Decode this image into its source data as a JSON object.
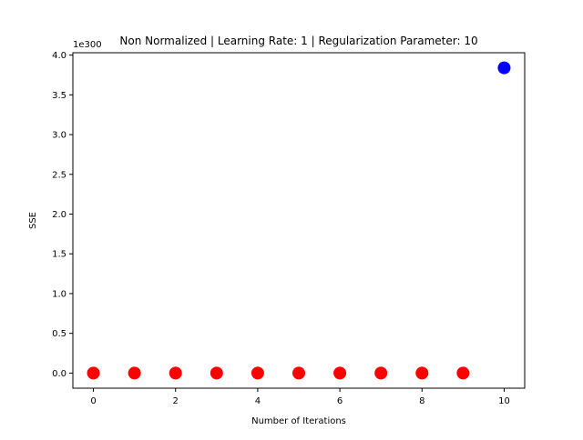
{
  "chart_data": {
    "type": "scatter",
    "title": "Non Normalized | Learning Rate: 1 | Regularization Parameter: 10",
    "xlabel": "Number of Iterations",
    "ylabel": "SSE",
    "y_offset_label": "1e300",
    "xlim": [
      -0.5,
      10.5
    ],
    "ylim": [
      -0.19,
      4.03
    ],
    "xticks": [
      0,
      2,
      4,
      6,
      8,
      10
    ],
    "xtick_labels": [
      "0",
      "2",
      "4",
      "6",
      "8",
      "10"
    ],
    "yticks": [
      0.0,
      0.5,
      1.0,
      1.5,
      2.0,
      2.5,
      3.0,
      3.5,
      4.0
    ],
    "ytick_labels": [
      "0.0",
      "0.5",
      "1.0",
      "1.5",
      "2.0",
      "2.5",
      "3.0",
      "3.5",
      "4.0"
    ],
    "grid": false,
    "series": [
      {
        "color": "#ff0000",
        "x": [
          0,
          1,
          2,
          3,
          4,
          5,
          6,
          7,
          8,
          9
        ],
        "y": [
          0,
          0,
          0,
          0,
          0,
          0,
          0,
          0,
          0,
          0
        ]
      },
      {
        "color": "#0000ff",
        "x": [
          10
        ],
        "y": [
          3.84
        ]
      }
    ]
  }
}
